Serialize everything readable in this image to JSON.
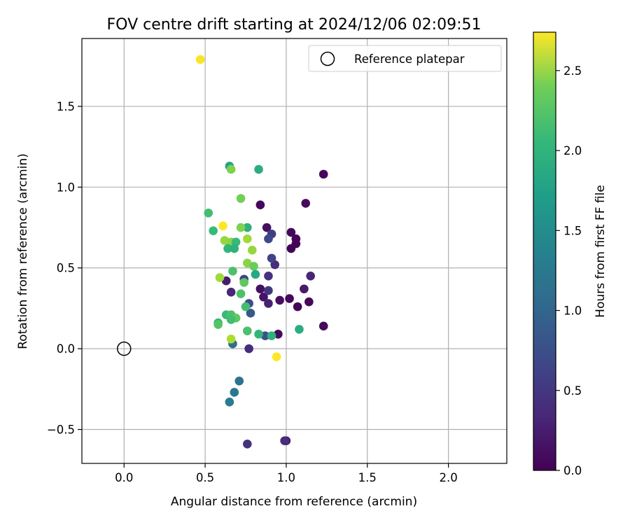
{
  "chart_data": {
    "type": "scatter",
    "title": "FOV centre drift starting at 2024/12/06 02:09:51",
    "xlabel": "Angular distance from reference (arcmin)",
    "ylabel": "Rotation from reference (arcmin)",
    "xlim": [
      -0.26,
      2.36
    ],
    "ylim": [
      -0.71,
      1.92
    ],
    "xticks": [
      0.0,
      0.5,
      1.0,
      1.5,
      2.0
    ],
    "xtick_labels": [
      "0.0",
      "0.5",
      "1.0",
      "1.5",
      "2.0"
    ],
    "yticks": [
      -0.5,
      0.0,
      0.5,
      1.0,
      1.5
    ],
    "ytick_labels": [
      "−0.5",
      "0.0",
      "0.5",
      "1.0",
      "1.5"
    ],
    "grid": true,
    "legend": {
      "position": "top-right",
      "entries": [
        "Reference platepar"
      ]
    },
    "reference_point": {
      "x": 0.0,
      "y": 0.0,
      "label": "Reference platepar"
    },
    "colorbar": {
      "label": "Hours from first FF file",
      "colormap": "viridis",
      "range": [
        0.0,
        2.74
      ],
      "ticks": [
        0.0,
        0.5,
        1.0,
        1.5,
        2.0,
        2.5
      ],
      "tick_labels": [
        "0.0",
        "0.5",
        "1.0",
        "1.5",
        "2.0",
        "2.5"
      ]
    },
    "points": [
      {
        "x": 1.23,
        "y": 1.08,
        "h": 0.05
      },
      {
        "x": 1.12,
        "y": 0.9,
        "h": 0.08
      },
      {
        "x": 0.84,
        "y": 0.89,
        "h": 0.06
      },
      {
        "x": 0.88,
        "y": 0.75,
        "h": 0.1
      },
      {
        "x": 1.03,
        "y": 0.72,
        "h": 0.05
      },
      {
        "x": 1.06,
        "y": 0.68,
        "h": 0.04
      },
      {
        "x": 1.06,
        "y": 0.65,
        "h": 0.03
      },
      {
        "x": 1.03,
        "y": 0.62,
        "h": 0.02
      },
      {
        "x": 0.93,
        "y": 0.52,
        "h": 0.35
      },
      {
        "x": 1.15,
        "y": 0.45,
        "h": 0.3
      },
      {
        "x": 1.11,
        "y": 0.37,
        "h": 0.2
      },
      {
        "x": 1.14,
        "y": 0.29,
        "h": 0.05
      },
      {
        "x": 1.07,
        "y": 0.26,
        "h": 0.04
      },
      {
        "x": 1.02,
        "y": 0.31,
        "h": 0.06
      },
      {
        "x": 0.96,
        "y": 0.3,
        "h": 0.1
      },
      {
        "x": 0.95,
        "y": 0.09,
        "h": 0.08
      },
      {
        "x": 1.23,
        "y": 0.14,
        "h": 0.07
      },
      {
        "x": 0.84,
        "y": 0.37,
        "h": 0.12
      },
      {
        "x": 0.86,
        "y": 0.32,
        "h": 0.15
      },
      {
        "x": 0.89,
        "y": 0.28,
        "h": 0.25
      },
      {
        "x": 0.89,
        "y": 0.36,
        "h": 0.45
      },
      {
        "x": 0.89,
        "y": 0.45,
        "h": 0.4
      },
      {
        "x": 0.91,
        "y": 0.56,
        "h": 0.55
      },
      {
        "x": 0.91,
        "y": 0.71,
        "h": 0.5
      },
      {
        "x": 0.89,
        "y": 0.68,
        "h": 0.6
      },
      {
        "x": 0.63,
        "y": 0.42,
        "h": 0.2
      },
      {
        "x": 0.66,
        "y": 0.35,
        "h": 0.3
      },
      {
        "x": 0.74,
        "y": 0.43,
        "h": 0.55
      },
      {
        "x": 0.77,
        "y": 0.28,
        "h": 0.65
      },
      {
        "x": 0.78,
        "y": 0.22,
        "h": 0.75
      },
      {
        "x": 0.87,
        "y": 0.08,
        "h": 0.7
      },
      {
        "x": 0.77,
        "y": 0.0,
        "h": 0.35
      },
      {
        "x": 0.67,
        "y": 0.03,
        "h": 1.0
      },
      {
        "x": 0.71,
        "y": -0.2,
        "h": 1.05
      },
      {
        "x": 0.68,
        "y": -0.27,
        "h": 1.1
      },
      {
        "x": 0.65,
        "y": -0.33,
        "h": 1.15
      },
      {
        "x": 0.76,
        "y": -0.59,
        "h": 0.4
      },
      {
        "x": 1.0,
        "y": -0.57,
        "h": 0.25
      },
      {
        "x": 0.99,
        "y": -0.57,
        "h": 0.35
      },
      {
        "x": 0.65,
        "y": 1.13,
        "h": 1.6
      },
      {
        "x": 0.83,
        "y": 1.11,
        "h": 1.7
      },
      {
        "x": 0.66,
        "y": 1.11,
        "h": 2.2
      },
      {
        "x": 0.72,
        "y": 0.93,
        "h": 2.15
      },
      {
        "x": 0.52,
        "y": 0.84,
        "h": 1.9
      },
      {
        "x": 0.55,
        "y": 0.73,
        "h": 1.85
      },
      {
        "x": 0.61,
        "y": 0.76,
        "h": 2.74
      },
      {
        "x": 0.76,
        "y": 0.75,
        "h": 1.75
      },
      {
        "x": 0.72,
        "y": 0.75,
        "h": 2.2
      },
      {
        "x": 0.62,
        "y": 0.67,
        "h": 2.3
      },
      {
        "x": 0.66,
        "y": 0.66,
        "h": 2.25
      },
      {
        "x": 0.69,
        "y": 0.66,
        "h": 1.85
      },
      {
        "x": 0.76,
        "y": 0.68,
        "h": 2.35
      },
      {
        "x": 0.64,
        "y": 0.62,
        "h": 1.8
      },
      {
        "x": 0.68,
        "y": 0.62,
        "h": 1.75
      },
      {
        "x": 0.79,
        "y": 0.61,
        "h": 2.3
      },
      {
        "x": 0.76,
        "y": 0.53,
        "h": 2.25
      },
      {
        "x": 0.8,
        "y": 0.51,
        "h": 2.1
      },
      {
        "x": 0.67,
        "y": 0.48,
        "h": 1.95
      },
      {
        "x": 0.81,
        "y": 0.46,
        "h": 1.65
      },
      {
        "x": 0.59,
        "y": 0.44,
        "h": 2.35
      },
      {
        "x": 0.74,
        "y": 0.41,
        "h": 2.05
      },
      {
        "x": 0.72,
        "y": 0.34,
        "h": 1.95
      },
      {
        "x": 0.75,
        "y": 0.26,
        "h": 1.9
      },
      {
        "x": 0.63,
        "y": 0.21,
        "h": 1.85
      },
      {
        "x": 0.66,
        "y": 0.21,
        "h": 1.95
      },
      {
        "x": 0.69,
        "y": 0.19,
        "h": 2.05
      },
      {
        "x": 0.66,
        "y": 0.18,
        "h": 1.9
      },
      {
        "x": 0.58,
        "y": 0.16,
        "h": 1.8
      },
      {
        "x": 0.58,
        "y": 0.15,
        "h": 2.0
      },
      {
        "x": 0.76,
        "y": 0.11,
        "h": 1.95
      },
      {
        "x": 0.83,
        "y": 0.09,
        "h": 1.8
      },
      {
        "x": 0.91,
        "y": 0.08,
        "h": 1.75
      },
      {
        "x": 1.08,
        "y": 0.12,
        "h": 1.7
      },
      {
        "x": 0.66,
        "y": 0.06,
        "h": 2.4
      },
      {
        "x": 0.47,
        "y": 1.79,
        "h": 2.72
      },
      {
        "x": 0.94,
        "y": -0.05,
        "h": 2.74
      }
    ]
  }
}
